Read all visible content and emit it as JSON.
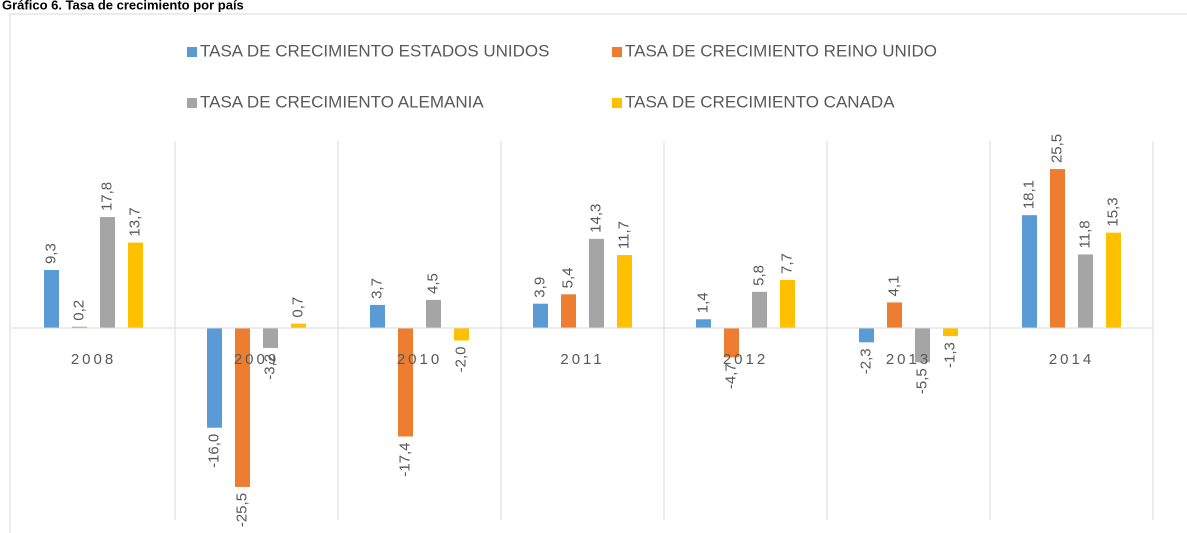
{
  "chart_data": {
    "type": "bar",
    "title": "Gráfico 6. Tasa de crecimiento por país",
    "categories": [
      "2008",
      "2009",
      "2010",
      "2011",
      "2012",
      "2013",
      "2014"
    ],
    "series": [
      {
        "name": "TASA DE CRECIMIENTO ESTADOS UNIDOS",
        "color": "#5b9bd5",
        "values": [
          9.3,
          -16.0,
          3.7,
          3.9,
          1.4,
          -2.3,
          18.1
        ],
        "value_labels": [
          "9,3",
          "-16,0",
          "3,7",
          "3,9",
          "1,4",
          "-2,3",
          "18,1"
        ]
      },
      {
        "name": "TASA DE CRECIMIENTO REINO UNIDO",
        "color": "#ed7d31",
        "values": [
          0.2,
          -25.5,
          -17.4,
          5.4,
          -4.7,
          4.1,
          25.5
        ],
        "value_labels": [
          "0,2",
          "-25,5",
          "-17,4",
          "5,4",
          "-4,7",
          "4,1",
          "25,5"
        ]
      },
      {
        "name": "TASA DE CRECIMIENTO ALEMANIA",
        "color": "#a5a5a5",
        "values": [
          17.8,
          -3.2,
          4.5,
          14.3,
          5.8,
          -5.5,
          11.8
        ],
        "value_labels": [
          "17,8",
          "-3,2",
          "4,5",
          "14,3",
          "5,8",
          "-5,5",
          "11,8"
        ]
      },
      {
        "name": "TASA DE CRECIMIENTO CANADA",
        "color": "#ffc000",
        "values": [
          13.7,
          0.7,
          -2.0,
          11.7,
          7.7,
          -1.3,
          15.3
        ],
        "value_labels": [
          "13,7",
          "0,7",
          "-2,0",
          "11,7",
          "7,7",
          "-1,3",
          "15,3"
        ]
      }
    ],
    "ylim": [
      -30,
      30
    ]
  }
}
